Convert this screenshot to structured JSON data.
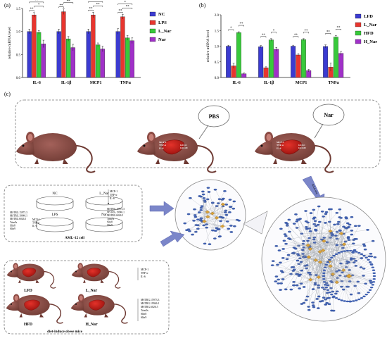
{
  "panel_labels": {
    "a": "(a)",
    "b": "(b)",
    "c": "(c)"
  },
  "chart_data": [
    {
      "type": "bar",
      "categories": [
        "IL-6",
        "IL-1β",
        "MCP1",
        "TNFα"
      ],
      "series": [
        {
          "name": "NC",
          "color": "#3b3bd1",
          "values": [
            1.0,
            1.0,
            1.0,
            1.0
          ],
          "errors": [
            0.05,
            0.05,
            0.05,
            0.06
          ]
        },
        {
          "name": "LPS",
          "color": "#e8352e",
          "values": [
            1.36,
            1.43,
            1.36,
            1.32
          ],
          "errors": [
            0.05,
            0.06,
            0.06,
            0.05
          ]
        },
        {
          "name": "L_Nar",
          "color": "#38c93b",
          "values": [
            0.98,
            0.84,
            0.71,
            0.86
          ],
          "errors": [
            0.04,
            0.05,
            0.04,
            0.05
          ]
        },
        {
          "name": "Nar",
          "color": "#a030c8",
          "values": [
            0.73,
            0.65,
            0.62,
            0.8
          ],
          "errors": [
            0.08,
            0.07,
            0.06,
            0.06
          ]
        }
      ],
      "ylabel": "relative mRNA level",
      "ylim": [
        0,
        1.5
      ],
      "yticks": [
        "0.0",
        "0.5",
        "1.0",
        "1.5"
      ],
      "legend": "right",
      "sig_labels": [
        "**",
        "*",
        "**",
        "**",
        "**",
        "*",
        "**",
        "**",
        "**",
        "**",
        "**",
        "*",
        "**",
        "**"
      ]
    },
    {
      "type": "bar",
      "categories": [
        "IL-6",
        "IL-1β",
        "MCP1",
        "TNFα"
      ],
      "series": [
        {
          "name": "LFD",
          "color": "#3b3bd1",
          "values": [
            1.0,
            0.98,
            1.0,
            0.99
          ],
          "errors": [
            0.03,
            0.04,
            0.03,
            0.05
          ]
        },
        {
          "name": "L_Nar",
          "color": "#e8352e",
          "values": [
            0.37,
            0.31,
            0.72,
            0.33
          ],
          "errors": [
            0.08,
            0.03,
            0.04,
            0.13
          ]
        },
        {
          "name": "HFD",
          "color": "#38c93b",
          "values": [
            1.43,
            1.2,
            1.21,
            1.29
          ],
          "errors": [
            0.03,
            0.04,
            0.03,
            0.05
          ]
        },
        {
          "name": "H_Nar",
          "color": "#a030c8",
          "values": [
            0.12,
            0.9,
            0.22,
            0.77
          ],
          "errors": [
            0.02,
            0.06,
            0.04,
            0.06
          ]
        }
      ],
      "ylabel": "relative mRNA level",
      "ylim": [
        0,
        2.0
      ],
      "yticks": [
        "0.0",
        "0.5",
        "1.0",
        "1.5",
        "2.0"
      ],
      "legend": "right",
      "sig_labels": [
        "*",
        "**",
        "**",
        "*",
        "**",
        "**",
        "**",
        "**"
      ]
    }
  ],
  "diagram": {
    "injection_labels": {
      "pbs": "PBS",
      "nar": "Nar"
    },
    "mouse_gene_left": [
      "MCP-1",
      "TNF-α",
      "IL-6"
    ],
    "mouse_gene_right": [
      "GCLC",
      "GCLM"
    ],
    "rna_seq_label": "RNA-seq",
    "cell_groups": [
      "NC",
      "L_Nar",
      "LPS",
      "Nar"
    ],
    "cell_list_top": [
      "MCP-1",
      "TNF-α",
      "IL-6"
    ],
    "cell_list_mid": [
      "MSTRG.15973.3",
      "MSTRG.19946.1",
      "MSTRG.6026.5",
      "Trim9s",
      "Slfn8",
      "Slfn9"
    ],
    "cell_list_left": [
      "MSTRG.15973.3",
      "MSTRG.19946.1",
      "MSTRG.6026.5",
      "Trim9s",
      "Slfn8",
      "Slfn9"
    ],
    "cell_list_small": [
      "MCP-1",
      "TNF-α",
      "IL-6"
    ],
    "cell_title": "AML-12 cell",
    "mice_groups": [
      "LFD",
      "L_Nar",
      "HFD",
      "H_Nar"
    ],
    "mice_list_top": [
      "MCP-1",
      "TNF-α",
      "IL-6"
    ],
    "mice_list_bottom": [
      "MSTRG.15973.3",
      "MSTRG.19946.1",
      "MSTRG.6026.5",
      "Trim9s",
      "Slfn8",
      "Slfn9"
    ],
    "mice_title": "diet-induce obese mice"
  }
}
